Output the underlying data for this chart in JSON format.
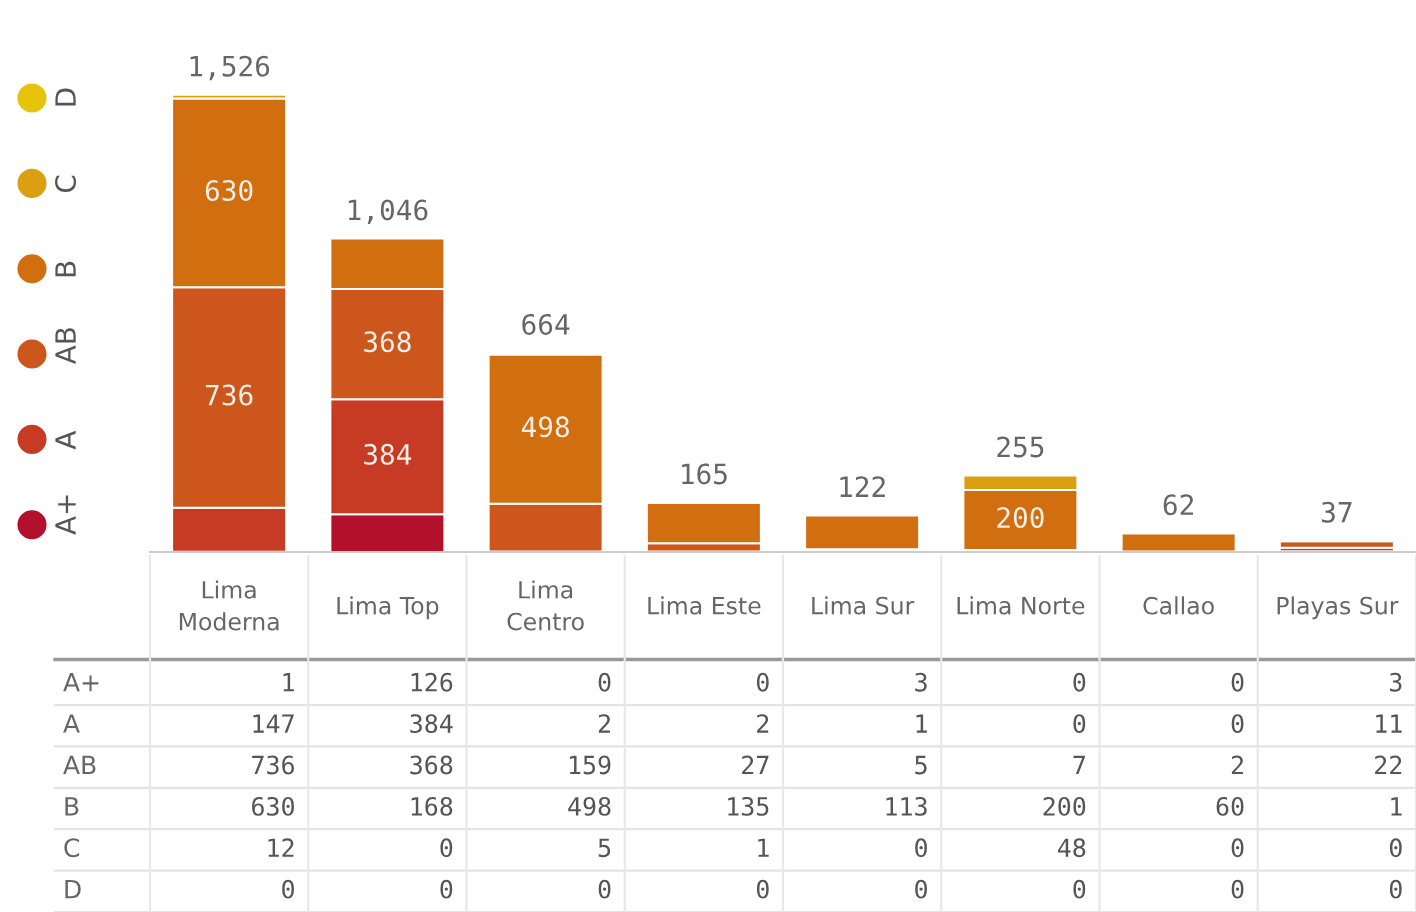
{
  "chart_data": {
    "type": "bar",
    "stacked": true,
    "categories": [
      "Lima Moderna",
      "Lima Top",
      "Lima Centro",
      "Lima Este",
      "Lima Sur",
      "Lima Norte",
      "Callao",
      "Playas Sur"
    ],
    "series": [
      {
        "name": "A+",
        "color": "#b3102c",
        "values": [
          1,
          126,
          0,
          0,
          3,
          0,
          0,
          3
        ],
        "value_labels": [
          "1",
          "126",
          "0",
          "0",
          "3",
          "0",
          "0",
          "3"
        ]
      },
      {
        "name": "A",
        "color": "#c73a24",
        "values": [
          147,
          384,
          2,
          2,
          1,
          0,
          0,
          11
        ],
        "value_labels": [
          "147",
          "384",
          "2",
          "2",
          "1",
          "0",
          "0",
          "11"
        ]
      },
      {
        "name": "AB",
        "color": "#cc561c",
        "values": [
          736,
          368,
          159,
          27,
          5,
          7,
          2,
          22
        ],
        "value_labels": [
          "736",
          "368",
          "159",
          "27",
          "5",
          "7",
          "2",
          "22"
        ]
      },
      {
        "name": "B",
        "color": "#d06e10",
        "values": [
          630,
          168,
          498,
          135,
          113,
          200,
          60,
          1
        ],
        "value_labels": [
          "630",
          "168",
          "498",
          "135",
          "113",
          "200",
          "60",
          "1"
        ]
      },
      {
        "name": "C",
        "color": "#daa012",
        "values": [
          12,
          0,
          5,
          1,
          0,
          48,
          0,
          0
        ],
        "value_labels": [
          "12",
          "0",
          "5",
          "1",
          "0",
          "48",
          "0",
          "0"
        ]
      },
      {
        "name": "D",
        "color": "#e6c40c",
        "values": [
          0,
          0,
          0,
          0,
          0,
          0,
          0,
          0
        ],
        "value_labels": [
          "0",
          "0",
          "0",
          "0",
          "0",
          "0",
          "0",
          "0"
        ]
      }
    ],
    "totals": [
      "1,526",
      "1,046",
      "664",
      "165",
      "122",
      "255",
      "62",
      "37"
    ],
    "legend": "left"
  }
}
